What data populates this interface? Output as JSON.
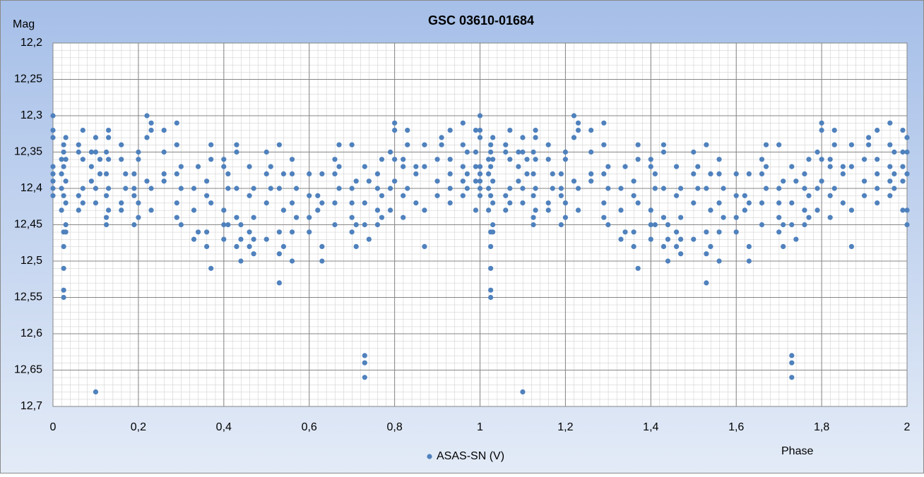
{
  "chart_data": {
    "type": "scatter",
    "title": "GSC 03610-01684",
    "y_label": "Mag",
    "x_label": "Phase",
    "xlim": [
      0,
      2
    ],
    "xticks": [
      0,
      {
        "value": 0.2,
        "label": "0,2"
      },
      {
        "value": 0.4,
        "label": "0,4"
      },
      {
        "value": 0.6,
        "label": "0,6"
      },
      {
        "value": 0.8,
        "label": "0,8"
      },
      1,
      {
        "value": 1.2,
        "label": "1,2"
      },
      {
        "value": 1.4,
        "label": "1,4"
      },
      {
        "value": 1.6,
        "label": "1,6"
      },
      {
        "value": 1.8,
        "label": "1,8"
      },
      2
    ],
    "ylim": [
      12.2,
      12.7
    ],
    "y_inverted": true,
    "yticks": [
      {
        "value": 12.2,
        "label": "12,2"
      },
      {
        "value": 12.25,
        "label": "12,25"
      },
      {
        "value": 12.3,
        "label": "12,3"
      },
      {
        "value": 12.35,
        "label": "12,35"
      },
      {
        "value": 12.4,
        "label": "12,4"
      },
      {
        "value": 12.45,
        "label": "12,45"
      },
      {
        "value": 12.5,
        "label": "12,5"
      },
      {
        "value": 12.55,
        "label": "12,55"
      },
      {
        "value": 12.6,
        "label": "12,6"
      },
      {
        "value": 12.65,
        "label": "12,65"
      },
      {
        "value": 12.7,
        "label": "12,7"
      }
    ],
    "grid": true,
    "legend": "bottom",
    "x": [
      0,
      0,
      0,
      0,
      0,
      0,
      0,
      0,
      0.02,
      0.02,
      0.02,
      0.02,
      0.025,
      0.025,
      0.025,
      0.025,
      0.025,
      0.025,
      0.025,
      0.025,
      0.025,
      0.03,
      0.03,
      0.03,
      0.03,
      0.03,
      0.03,
      0.06,
      0.06,
      0.06,
      0.06,
      0.07,
      0.07,
      0.07,
      0.07,
      0.09,
      0.09,
      0.09,
      0.1,
      0.1,
      0.1,
      0.1,
      0.1,
      0.11,
      0.11,
      0.125,
      0.125,
      0.125,
      0.125,
      0.125,
      0.13,
      0.13,
      0.13,
      0.13,
      0.13,
      0.16,
      0.16,
      0.16,
      0.16,
      0.17,
      0.17,
      0.19,
      0.19,
      0.19,
      0.19,
      0.2,
      0.2,
      0.2,
      0.2,
      0.22,
      0.22,
      0.22,
      0.23,
      0.23,
      0.23,
      0.23,
      0.26,
      0.26,
      0.26,
      0.26,
      0.29,
      0.29,
      0.29,
      0.29,
      0.29,
      0.3,
      0.3,
      0.3,
      0.33,
      0.33,
      0.33,
      0.34,
      0.34,
      0.36,
      0.36,
      0.36,
      0.36,
      0.37,
      0.37,
      0.37,
      0.37,
      0.4,
      0.4,
      0.4,
      0.4,
      0.4,
      0.41,
      0.41,
      0.41,
      0.43,
      0.43,
      0.43,
      0.43,
      0.43,
      0.44,
      0.44,
      0.44,
      0.46,
      0.46,
      0.46,
      0.46,
      0.47,
      0.47,
      0.47,
      0.47,
      0.5,
      0.5,
      0.5,
      0.5,
      0.51,
      0.51,
      0.53,
      0.53,
      0.53,
      0.53,
      0.53,
      0.54,
      0.54,
      0.54,
      0.56,
      0.56,
      0.56,
      0.56,
      0.56,
      0.57,
      0.57,
      0.6,
      0.6,
      0.6,
      0.6,
      0.62,
      0.62,
      0.63,
      0.63,
      0.63,
      0.63,
      0.66,
      0.66,
      0.66,
      0.66,
      0.67,
      0.67,
      0.67,
      0.7,
      0.7,
      0.7,
      0.7,
      0.7,
      0.71,
      0.71,
      0.71,
      0.73,
      0.73,
      0.73,
      0.73,
      0.73,
      0.73,
      0.74,
      0.74,
      0.76,
      0.76,
      0.76,
      0.76,
      0.77,
      0.77,
      0.77,
      0.79,
      0.79,
      0.79,
      0.8,
      0.8,
      0.8,
      0.8,
      0.82,
      0.82,
      0.82,
      0.82,
      0.83,
      0.83,
      0.83,
      0.85,
      0.85,
      0.85,
      0.87,
      0.87,
      0.87,
      0.87,
      0.9,
      0.9,
      0.9,
      0.91,
      0.91,
      0.93,
      0.93,
      0.93,
      0.93,
      0.93,
      0.96,
      0.96,
      0.96,
      0.96,
      0.96,
      0.97,
      0.97,
      0.97,
      0.99,
      0.99,
      0.99,
      0.99,
      0.99,
      1,
      1,
      1,
      1,
      1,
      1,
      1,
      1,
      1.02,
      1.02,
      1.02,
      1.02,
      1.025,
      1.025,
      1.025,
      1.025,
      1.025,
      1.025,
      1.025,
      1.025,
      1.025,
      1.03,
      1.03,
      1.03,
      1.03,
      1.03,
      1.03,
      1.06,
      1.06,
      1.06,
      1.06,
      1.07,
      1.07,
      1.07,
      1.07,
      1.09,
      1.09,
      1.09,
      1.1,
      1.1,
      1.1,
      1.1,
      1.1,
      1.11,
      1.11,
      1.125,
      1.125,
      1.125,
      1.125,
      1.125,
      1.13,
      1.13,
      1.13,
      1.13,
      1.13,
      1.16,
      1.16,
      1.16,
      1.16,
      1.17,
      1.17,
      1.19,
      1.19,
      1.19,
      1.19,
      1.2,
      1.2,
      1.2,
      1.2,
      1.22,
      1.22,
      1.22,
      1.23,
      1.23,
      1.23,
      1.23,
      1.26,
      1.26,
      1.26,
      1.26,
      1.29,
      1.29,
      1.29,
      1.29,
      1.29,
      1.3,
      1.3,
      1.3,
      1.33,
      1.33,
      1.33,
      1.34,
      1.34,
      1.36,
      1.36,
      1.36,
      1.36,
      1.37,
      1.37,
      1.37,
      1.37,
      1.4,
      1.4,
      1.4,
      1.4,
      1.4,
      1.41,
      1.41,
      1.41,
      1.43,
      1.43,
      1.43,
      1.43,
      1.43,
      1.44,
      1.44,
      1.44,
      1.46,
      1.46,
      1.46,
      1.46,
      1.47,
      1.47,
      1.47,
      1.47,
      1.5,
      1.5,
      1.5,
      1.5,
      1.51,
      1.51,
      1.53,
      1.53,
      1.53,
      1.53,
      1.53,
      1.54,
      1.54,
      1.54,
      1.56,
      1.56,
      1.56,
      1.56,
      1.56,
      1.57,
      1.57,
      1.6,
      1.6,
      1.6,
      1.6,
      1.62,
      1.62,
      1.63,
      1.63,
      1.63,
      1.63,
      1.66,
      1.66,
      1.66,
      1.66,
      1.67,
      1.67,
      1.67,
      1.7,
      1.7,
      1.7,
      1.7,
      1.7,
      1.71,
      1.71,
      1.71,
      1.73,
      1.73,
      1.73,
      1.73,
      1.73,
      1.73,
      1.74,
      1.74,
      1.76,
      1.76,
      1.76,
      1.76,
      1.77,
      1.77,
      1.77,
      1.79,
      1.79,
      1.79,
      1.8,
      1.8,
      1.8,
      1.8,
      1.82,
      1.82,
      1.82,
      1.82,
      1.83,
      1.83,
      1.83,
      1.85,
      1.85,
      1.85,
      1.87,
      1.87,
      1.87,
      1.87,
      1.9,
      1.9,
      1.9,
      1.91,
      1.91,
      1.93,
      1.93,
      1.93,
      1.93,
      1.93,
      1.96,
      1.96,
      1.96,
      1.96,
      1.96,
      1.97,
      1.97,
      1.97,
      1.99,
      1.99,
      1.99,
      1.99,
      1.99,
      2,
      2,
      2,
      2,
      2
    ],
    "series": [
      {
        "name": "ASAS-SN (V)",
        "color": "#4f81bd",
        "values": [
          12.3,
          12.32,
          12.33,
          12.37,
          12.38,
          12.39,
          12.4,
          12.41,
          12.36,
          12.38,
          12.4,
          12.43,
          12.34,
          12.35,
          12.37,
          12.41,
          12.46,
          12.48,
          12.51,
          12.54,
          12.55,
          12.33,
          12.36,
          12.39,
          12.42,
          12.45,
          12.46,
          12.34,
          12.35,
          12.41,
          12.43,
          12.32,
          12.36,
          12.4,
          12.42,
          12.35,
          12.37,
          12.39,
          12.33,
          12.35,
          12.4,
          12.42,
          12.68,
          12.36,
          12.38,
          12.35,
          12.38,
          12.41,
          12.44,
          12.45,
          12.32,
          12.33,
          12.36,
          12.4,
          12.43,
          12.34,
          12.36,
          12.42,
          12.43,
          12.38,
          12.4,
          12.38,
          12.4,
          12.41,
          12.45,
          12.35,
          12.36,
          12.42,
          12.44,
          12.3,
          12.33,
          12.39,
          12.31,
          12.32,
          12.4,
          12.43,
          12.32,
          12.35,
          12.38,
          12.39,
          12.31,
          12.34,
          12.38,
          12.42,
          12.44,
          12.37,
          12.4,
          12.45,
          12.4,
          12.43,
          12.47,
          12.37,
          12.46,
          12.39,
          12.41,
          12.46,
          12.48,
          12.34,
          12.36,
          12.42,
          12.51,
          12.36,
          12.37,
          12.43,
          12.45,
          12.47,
          12.38,
          12.4,
          12.45,
          12.34,
          12.35,
          12.4,
          12.44,
          12.48,
          12.45,
          12.47,
          12.5,
          12.37,
          12.41,
          12.46,
          12.48,
          12.4,
          12.44,
          12.47,
          12.49,
          12.35,
          12.38,
          12.42,
          12.47,
          12.37,
          12.4,
          12.34,
          12.4,
          12.46,
          12.49,
          12.53,
          12.38,
          12.43,
          12.48,
          12.36,
          12.38,
          12.42,
          12.46,
          12.5,
          12.4,
          12.44,
          12.38,
          12.41,
          12.44,
          12.46,
          12.41,
          12.43,
          12.38,
          12.42,
          12.48,
          12.5,
          12.36,
          12.38,
          12.42,
          12.45,
          12.34,
          12.37,
          12.4,
          12.34,
          12.4,
          12.42,
          12.44,
          12.46,
          12.39,
          12.45,
          12.48,
          12.37,
          12.42,
          12.45,
          12.63,
          12.64,
          12.66,
          12.39,
          12.47,
          12.38,
          12.4,
          12.43,
          12.45,
          12.36,
          12.41,
          12.44,
          12.35,
          12.4,
          12.43,
          12.31,
          12.32,
          12.36,
          12.39,
          12.36,
          12.37,
          12.41,
          12.44,
          12.32,
          12.34,
          12.4,
          12.37,
          12.38,
          12.42,
          12.34,
          12.37,
          12.43,
          12.48,
          12.36,
          12.39,
          12.41,
          12.33,
          12.34,
          12.32,
          12.36,
          12.38,
          12.4,
          12.42,
          12.31,
          12.34,
          12.37,
          12.39,
          12.41,
          12.35,
          12.38,
          12.4,
          12.32,
          12.35,
          12.37,
          12.39,
          12.43,
          12.3,
          12.32,
          12.33,
          12.37,
          12.38,
          12.39,
          12.4,
          12.41,
          12.36,
          12.38,
          12.4,
          12.43,
          12.34,
          12.35,
          12.37,
          12.41,
          12.46,
          12.48,
          12.51,
          12.54,
          12.55,
          12.33,
          12.36,
          12.39,
          12.42,
          12.45,
          12.46,
          12.34,
          12.35,
          12.41,
          12.43,
          12.32,
          12.36,
          12.4,
          12.42,
          12.35,
          12.37,
          12.39,
          12.33,
          12.35,
          12.4,
          12.42,
          12.68,
          12.36,
          12.38,
          12.35,
          12.38,
          12.41,
          12.44,
          12.45,
          12.32,
          12.33,
          12.36,
          12.4,
          12.43,
          12.34,
          12.36,
          12.42,
          12.43,
          12.38,
          12.4,
          12.38,
          12.4,
          12.41,
          12.45,
          12.35,
          12.36,
          12.42,
          12.44,
          12.3,
          12.33,
          12.39,
          12.31,
          12.32,
          12.4,
          12.43,
          12.32,
          12.35,
          12.38,
          12.39,
          12.31,
          12.34,
          12.38,
          12.42,
          12.44,
          12.37,
          12.4,
          12.45,
          12.4,
          12.43,
          12.47,
          12.37,
          12.46,
          12.39,
          12.41,
          12.46,
          12.48,
          12.34,
          12.36,
          12.42,
          12.51,
          12.36,
          12.37,
          12.43,
          12.45,
          12.47,
          12.38,
          12.4,
          12.45,
          12.34,
          12.35,
          12.4,
          12.44,
          12.48,
          12.45,
          12.47,
          12.5,
          12.37,
          12.41,
          12.46,
          12.48,
          12.4,
          12.44,
          12.47,
          12.49,
          12.35,
          12.38,
          12.42,
          12.47,
          12.37,
          12.4,
          12.34,
          12.4,
          12.46,
          12.49,
          12.53,
          12.38,
          12.43,
          12.48,
          12.36,
          12.38,
          12.42,
          12.46,
          12.5,
          12.4,
          12.44,
          12.38,
          12.41,
          12.44,
          12.46,
          12.41,
          12.43,
          12.38,
          12.42,
          12.48,
          12.5,
          12.36,
          12.38,
          12.42,
          12.45,
          12.34,
          12.37,
          12.4,
          12.34,
          12.4,
          12.42,
          12.44,
          12.46,
          12.39,
          12.45,
          12.48,
          12.37,
          12.42,
          12.45,
          12.63,
          12.64,
          12.66,
          12.39,
          12.47,
          12.38,
          12.4,
          12.43,
          12.45,
          12.36,
          12.41,
          12.44,
          12.35,
          12.4,
          12.43,
          12.31,
          12.32,
          12.36,
          12.39,
          12.36,
          12.37,
          12.41,
          12.44,
          12.32,
          12.34,
          12.4,
          12.37,
          12.38,
          12.42,
          12.34,
          12.37,
          12.43,
          12.48,
          12.36,
          12.39,
          12.41,
          12.33,
          12.34,
          12.32,
          12.36,
          12.38,
          12.4,
          12.42,
          12.31,
          12.34,
          12.37,
          12.39,
          12.41,
          12.35,
          12.38,
          12.4,
          12.32,
          12.35,
          12.37,
          12.39,
          12.43,
          12.33,
          12.35,
          12.38,
          12.43,
          12.45
        ]
      }
    ]
  }
}
